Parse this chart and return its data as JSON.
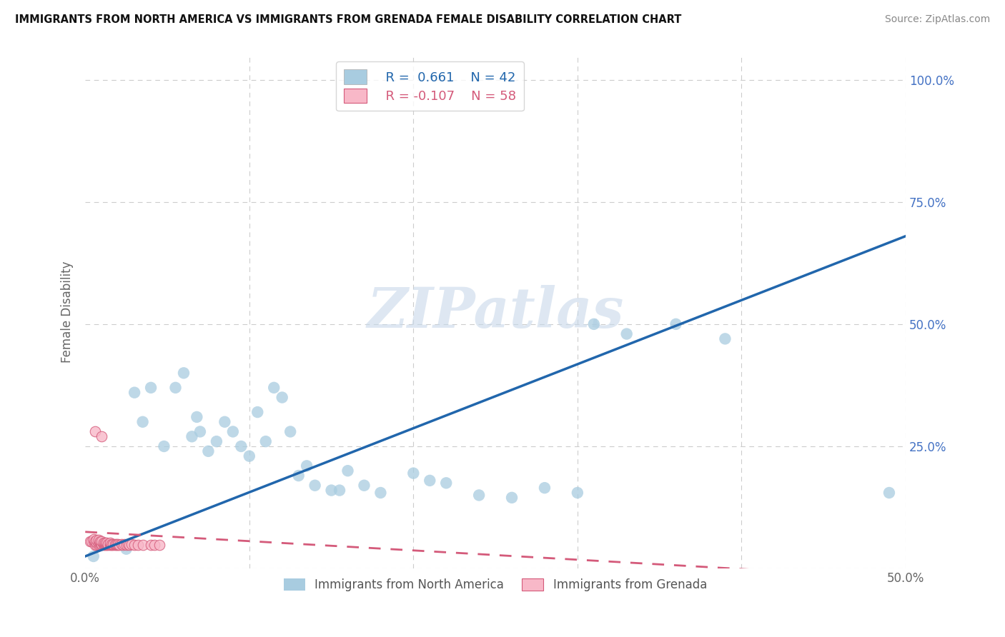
{
  "title": "IMMIGRANTS FROM NORTH AMERICA VS IMMIGRANTS FROM GRENADA FEMALE DISABILITY CORRELATION CHART",
  "source": "Source: ZipAtlas.com",
  "ylabel": "Female Disability",
  "xlim": [
    0.0,
    0.5
  ],
  "ylim": [
    0.0,
    1.05
  ],
  "ytick_values": [
    0.0,
    0.25,
    0.5,
    0.75,
    1.0
  ],
  "xtick_values": [
    0.0,
    0.1,
    0.2,
    0.3,
    0.4,
    0.5
  ],
  "legend_blue_R": "0.661",
  "legend_blue_N": "42",
  "legend_pink_R": "-0.107",
  "legend_pink_N": "58",
  "blue_color": "#a8cce0",
  "blue_line_color": "#2166ac",
  "pink_color": "#f8b8c8",
  "pink_line_color": "#d45a7a",
  "watermark": "ZIPatlas",
  "blue_scatter_x": [
    0.005,
    0.025,
    0.03,
    0.035,
    0.04,
    0.048,
    0.055,
    0.06,
    0.065,
    0.068,
    0.07,
    0.075,
    0.08,
    0.085,
    0.09,
    0.095,
    0.1,
    0.105,
    0.11,
    0.115,
    0.12,
    0.125,
    0.13,
    0.135,
    0.14,
    0.15,
    0.155,
    0.16,
    0.17,
    0.18,
    0.2,
    0.21,
    0.22,
    0.24,
    0.26,
    0.28,
    0.3,
    0.31,
    0.33,
    0.36,
    0.39,
    0.49
  ],
  "blue_scatter_y": [
    0.025,
    0.04,
    0.36,
    0.3,
    0.37,
    0.25,
    0.37,
    0.4,
    0.27,
    0.31,
    0.28,
    0.24,
    0.26,
    0.3,
    0.28,
    0.25,
    0.23,
    0.32,
    0.26,
    0.37,
    0.35,
    0.28,
    0.19,
    0.21,
    0.17,
    0.16,
    0.16,
    0.2,
    0.17,
    0.155,
    0.195,
    0.18,
    0.175,
    0.15,
    0.145,
    0.165,
    0.155,
    0.5,
    0.48,
    0.5,
    0.47,
    0.155
  ],
  "pink_scatter_x": [
    0.003,
    0.004,
    0.005,
    0.005,
    0.006,
    0.006,
    0.007,
    0.007,
    0.007,
    0.008,
    0.008,
    0.008,
    0.009,
    0.009,
    0.009,
    0.01,
    0.01,
    0.01,
    0.011,
    0.011,
    0.011,
    0.012,
    0.012,
    0.012,
    0.013,
    0.013,
    0.013,
    0.014,
    0.014,
    0.015,
    0.015,
    0.015,
    0.016,
    0.016,
    0.017,
    0.017,
    0.018,
    0.018,
    0.019,
    0.019,
    0.02,
    0.02,
    0.021,
    0.022,
    0.023,
    0.024,
    0.025,
    0.026,
    0.027,
    0.028,
    0.03,
    0.032,
    0.035,
    0.04,
    0.042,
    0.045,
    0.006,
    0.01
  ],
  "pink_scatter_y": [
    0.055,
    0.055,
    0.055,
    0.06,
    0.048,
    0.055,
    0.048,
    0.052,
    0.058,
    0.048,
    0.052,
    0.058,
    0.048,
    0.052,
    0.055,
    0.048,
    0.05,
    0.055,
    0.048,
    0.05,
    0.053,
    0.048,
    0.05,
    0.053,
    0.048,
    0.05,
    0.053,
    0.048,
    0.05,
    0.048,
    0.05,
    0.052,
    0.048,
    0.05,
    0.048,
    0.05,
    0.048,
    0.05,
    0.048,
    0.05,
    0.048,
    0.05,
    0.048,
    0.05,
    0.048,
    0.05,
    0.048,
    0.05,
    0.048,
    0.05,
    0.048,
    0.048,
    0.048,
    0.048,
    0.048,
    0.048,
    0.28,
    0.27
  ],
  "blue_line_x0": 0.0,
  "blue_line_y0": 0.025,
  "blue_line_x1": 0.5,
  "blue_line_y1": 0.68,
  "pink_line_x0": 0.0,
  "pink_line_y0": 0.075,
  "pink_line_x1": 0.5,
  "pink_line_y1": -0.02
}
